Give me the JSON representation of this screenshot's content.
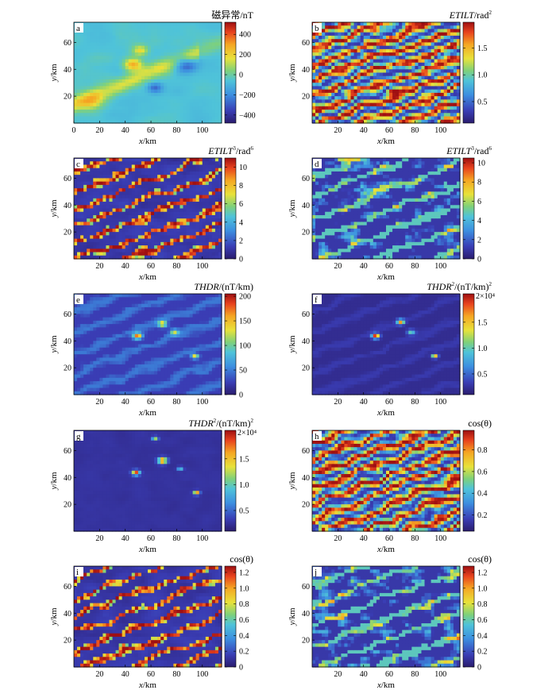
{
  "chart_data": [
    {
      "type": "heatmap",
      "panel_letter": "a",
      "title": "磁异常/nT",
      "title_sup": "",
      "xlabel": "x/km",
      "ylabel": "y/km",
      "xlim": [
        0,
        115
      ],
      "ylim": [
        0,
        75
      ],
      "xticks": [
        0,
        20,
        40,
        60,
        80,
        100
      ],
      "yticks": [
        20,
        40,
        60
      ],
      "colorbar": {
        "ticks": [
          -400,
          -200,
          0,
          200,
          400
        ],
        "tick_labels": [
          "−400",
          "−200",
          "0",
          "200",
          "400"
        ],
        "range": [
          -480,
          520
        ],
        "multiplier": ""
      },
      "pattern": "anomaly"
    },
    {
      "type": "heatmap",
      "panel_letter": "b",
      "title": "ETILT/rad",
      "title_sup": "2",
      "xlabel": "x/km",
      "ylabel": "y/km",
      "xlim": [
        0,
        115
      ],
      "ylim": [
        0,
        75
      ],
      "xticks": [
        20,
        40,
        60,
        80,
        100
      ],
      "yticks": [
        20,
        40,
        60
      ],
      "colorbar": {
        "ticks": [
          0.5,
          1.0,
          1.5
        ],
        "tick_labels": [
          "0.5",
          "1.0",
          "1.5"
        ],
        "range": [
          0.1,
          1.98
        ],
        "multiplier": ""
      },
      "pattern": "tilt_dense"
    },
    {
      "type": "heatmap",
      "panel_letter": "c",
      "title": "ETILT/rad",
      "title_sup": "6",
      "title_mid_sup": "3",
      "xlabel": "x/km",
      "ylabel": "y/km",
      "xlim": [
        0,
        115
      ],
      "ylim": [
        0,
        75
      ],
      "xticks": [
        20,
        40,
        60,
        80,
        100
      ],
      "yticks": [
        20,
        40,
        60
      ],
      "colorbar": {
        "ticks": [
          0,
          2,
          4,
          6,
          8,
          10
        ],
        "tick_labels": [
          "0",
          "2",
          "4",
          "6",
          "8",
          "10"
        ],
        "range": [
          0,
          11
        ],
        "multiplier": ""
      },
      "pattern": "tilt_sparse"
    },
    {
      "type": "heatmap",
      "panel_letter": "d",
      "title": "ETILT/rad",
      "title_sup": "6",
      "title_mid_sup": "3",
      "xlabel": "x/km",
      "ylabel": "y/km",
      "xlim": [
        0,
        115
      ],
      "ylim": [
        0,
        75
      ],
      "xticks": [
        20,
        40,
        60,
        80,
        100
      ],
      "yticks": [
        20,
        40,
        60
      ],
      "colorbar": {
        "ticks": [
          0,
          2,
          4,
          6,
          8,
          10
        ],
        "tick_labels": [
          "0",
          "2",
          "4",
          "6",
          "8",
          "10"
        ],
        "range": [
          0,
          10.5
        ],
        "multiplier": ""
      },
      "pattern": "tilt_blobs"
    },
    {
      "type": "heatmap",
      "panel_letter": "e",
      "title": "THDR/(nT/km)",
      "title_sup": "",
      "xlabel": "x/km",
      "ylabel": "y/km",
      "xlim": [
        0,
        115
      ],
      "ylim": [
        0,
        75
      ],
      "xticks": [
        20,
        40,
        60,
        80,
        100
      ],
      "yticks": [
        20,
        40,
        60
      ],
      "colorbar": {
        "ticks": [
          0,
          50,
          100,
          150,
          200
        ],
        "tick_labels": [
          "0",
          "50",
          "100",
          "150",
          "200"
        ],
        "range": [
          0,
          205
        ],
        "multiplier": ""
      },
      "pattern": "thdr"
    },
    {
      "type": "heatmap",
      "panel_letter": "f",
      "title": "THDR/(nT/km)",
      "title_sup": "2",
      "title_mid_sup": "2",
      "xlabel": "x/km",
      "ylabel": "y/km",
      "xlim": [
        0,
        115
      ],
      "ylim": [
        0,
        75
      ],
      "xticks": [
        20,
        40,
        60,
        80,
        100
      ],
      "yticks": [
        20,
        40,
        60
      ],
      "colorbar": {
        "ticks": [
          0.5,
          1.0,
          1.5
        ],
        "tick_labels": [
          "0.5",
          "1.0",
          "1.5"
        ],
        "range": [
          0.1,
          2.05
        ],
        "multiplier": "2×10⁴"
      },
      "pattern": "thdr_sq"
    },
    {
      "type": "heatmap",
      "panel_letter": "g",
      "title": "THDR/(nT/km)",
      "title_sup": "2",
      "title_mid_sup": "2",
      "xlabel": "x/km",
      "ylabel": "y/km",
      "xlim": [
        0,
        115
      ],
      "ylim": [
        0,
        75
      ],
      "xticks": [
        20,
        40,
        60,
        80,
        100
      ],
      "yticks": [
        20,
        40,
        60
      ],
      "colorbar": {
        "ticks": [
          0.5,
          1.0,
          1.5
        ],
        "tick_labels": [
          "0.5",
          "1.0",
          "1.5"
        ],
        "range": [
          0.1,
          2.05
        ],
        "multiplier": "2×10⁴"
      },
      "pattern": "thdr_spots"
    },
    {
      "type": "heatmap",
      "panel_letter": "h",
      "title": "cos(θ)",
      "title_sup": "",
      "xlabel": "x/km",
      "ylabel": "y/km",
      "xlim": [
        0,
        115
      ],
      "ylim": [
        0,
        75
      ],
      "xticks": [
        20,
        40,
        60,
        80,
        100
      ],
      "yticks": [
        20,
        40,
        60
      ],
      "colorbar": {
        "ticks": [
          0.2,
          0.4,
          0.6,
          0.8
        ],
        "tick_labels": [
          "0.2",
          "0.4",
          "0.6",
          "0.8"
        ],
        "range": [
          0.05,
          0.98
        ],
        "multiplier": ""
      },
      "pattern": "tilt_dense"
    },
    {
      "type": "heatmap",
      "panel_letter": "i",
      "title": "cos(θ)",
      "title_sup": "",
      "xlabel": "x/km",
      "ylabel": "y/km",
      "xlim": [
        0,
        115
      ],
      "ylim": [
        0,
        75
      ],
      "xticks": [
        20,
        40,
        60,
        80,
        100
      ],
      "yticks": [
        20,
        40,
        60
      ],
      "colorbar": {
        "ticks": [
          0,
          0.2,
          0.4,
          0.6,
          0.8,
          1.0,
          1.2
        ],
        "tick_labels": [
          "0",
          "0.2",
          "0.4",
          "0.6",
          "0.8",
          "1.0",
          "1.2"
        ],
        "range": [
          0,
          1.28
        ],
        "multiplier": ""
      },
      "pattern": "tilt_sparse"
    },
    {
      "type": "heatmap",
      "panel_letter": "j",
      "title": "cos(θ)",
      "title_sup": "",
      "xlabel": "x/km",
      "ylabel": "y/km",
      "xlim": [
        0,
        115
      ],
      "ylim": [
        0,
        75
      ],
      "xticks": [
        20,
        40,
        60,
        80,
        100
      ],
      "yticks": [
        20,
        40,
        60
      ],
      "colorbar": {
        "ticks": [
          0,
          0.2,
          0.4,
          0.6,
          0.8,
          1.0,
          1.2
        ],
        "tick_labels": [
          "0",
          "0.2",
          "0.4",
          "0.6",
          "0.8",
          "1.0",
          "1.2"
        ],
        "range": [
          0,
          1.28
        ],
        "multiplier": ""
      },
      "pattern": "tilt_blobs"
    }
  ]
}
